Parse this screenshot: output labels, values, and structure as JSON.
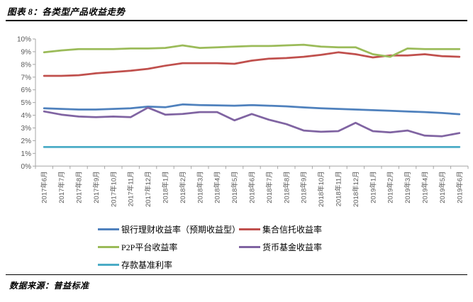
{
  "page": {
    "title": "图表 8：各类型产品收益走势",
    "source": "数据来源：普益标准"
  },
  "chart_data": {
    "type": "line",
    "title": "各类型产品收益走势",
    "xlabel": "",
    "ylabel": "",
    "ylim": [
      0,
      10
    ],
    "ytick_step": 1,
    "ytick_suffix": "%",
    "grid": false,
    "legend_position": "bottom",
    "axis_label_color": "#595959",
    "categories": [
      "2017年6月",
      "2017年7月",
      "2017年8月",
      "2017年9月",
      "2017年10月",
      "2017年11月",
      "2017年12月",
      "2018年1月",
      "2018年2月",
      "2018年3月",
      "2018年4月",
      "2018年5月",
      "2018年6月",
      "2018年7月",
      "2018年8月",
      "2018年9月",
      "2018年10月",
      "2018年11月",
      "2018年12月",
      "2019年1月",
      "2019年2月",
      "2019年3月",
      "2019年4月",
      "2019年5月",
      "2019年6月"
    ],
    "series": [
      {
        "name": "银行理财收益率（预期收益型）",
        "id": "bank-wmp",
        "color": "#4F81BD",
        "values": [
          4.55,
          4.5,
          4.45,
          4.45,
          4.5,
          4.55,
          4.68,
          4.63,
          4.85,
          4.8,
          4.78,
          4.75,
          4.8,
          4.75,
          4.7,
          4.62,
          4.55,
          4.5,
          4.45,
          4.4,
          4.35,
          4.3,
          4.25,
          4.18,
          4.08
        ]
      },
      {
        "name": "集合信托收益率",
        "id": "trust",
        "color": "#C0504D",
        "values": [
          7.1,
          7.1,
          7.15,
          7.3,
          7.4,
          7.5,
          7.65,
          7.9,
          8.1,
          8.1,
          8.1,
          8.05,
          8.3,
          8.45,
          8.5,
          8.6,
          8.75,
          8.95,
          8.8,
          8.55,
          8.7,
          8.7,
          8.8,
          8.65,
          8.6
        ]
      },
      {
        "name": "P2P平台收益率",
        "id": "p2p",
        "color": "#9BBB59",
        "values": [
          8.95,
          9.1,
          9.2,
          9.2,
          9.2,
          9.25,
          9.25,
          9.3,
          9.5,
          9.3,
          9.35,
          9.4,
          9.45,
          9.45,
          9.5,
          9.55,
          9.4,
          9.35,
          9.35,
          8.8,
          8.6,
          9.25,
          9.2,
          9.2,
          9.2
        ]
      },
      {
        "name": "货币基金收益率",
        "id": "money-fund",
        "color": "#8064A2",
        "values": [
          4.3,
          4.05,
          3.9,
          3.85,
          3.9,
          3.85,
          4.6,
          4.05,
          4.1,
          4.25,
          4.25,
          3.6,
          4.1,
          3.65,
          3.3,
          2.8,
          2.7,
          2.75,
          3.4,
          2.75,
          2.65,
          2.8,
          2.4,
          2.35,
          2.6
        ]
      },
      {
        "name": "存款基准利率",
        "id": "deposit-rate",
        "color": "#4BACC6",
        "values": [
          1.5,
          1.5,
          1.5,
          1.5,
          1.5,
          1.5,
          1.5,
          1.5,
          1.5,
          1.5,
          1.5,
          1.5,
          1.5,
          1.5,
          1.5,
          1.5,
          1.5,
          1.5,
          1.5,
          1.5,
          1.5,
          1.5,
          1.5,
          1.5,
          1.5
        ]
      }
    ]
  }
}
